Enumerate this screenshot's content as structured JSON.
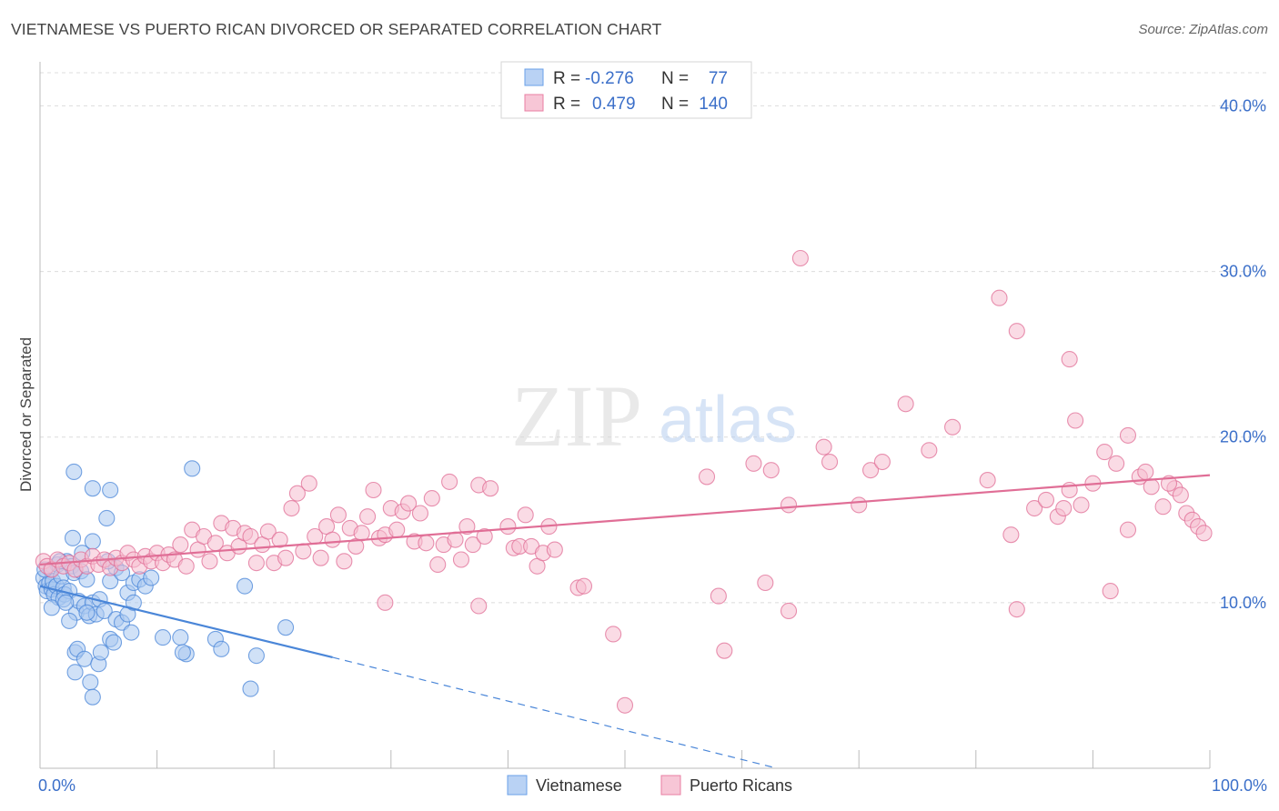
{
  "title": "VIETNAMESE VS PUERTO RICAN DIVORCED OR SEPARATED CORRELATION CHART",
  "source": "Source: ZipAtlas.com",
  "watermark": {
    "zip": "ZIP",
    "atlas": "atlas"
  },
  "legend": {
    "rows": [
      {
        "r_label": "R =",
        "r_value": "-0.276",
        "n_label": "N =",
        "n_value": "77",
        "color": "#6aa0e8",
        "fill": "#b9d2f4"
      },
      {
        "r_label": "R =",
        "r_value": "0.479",
        "n_label": "N =",
        "n_value": "140",
        "color": "#e87fa3",
        "fill": "#f7c6d6"
      }
    ]
  },
  "chart_data": {
    "type": "scatter",
    "title": "VIETNAMESE VS PUERTO RICAN DIVORCED OR SEPARATED CORRELATION CHART",
    "xlabel": "",
    "ylabel": "Divorced or Separated",
    "xlim": [
      0,
      100
    ],
    "ylim": [
      0,
      42
    ],
    "x_tick_labels": [
      "0.0%",
      "100.0%"
    ],
    "y_ticks": [
      10,
      20,
      30,
      40
    ],
    "y_tick_labels": [
      "10.0%",
      "20.0%",
      "30.0%",
      "40.0%"
    ],
    "grid": true,
    "legend_position": "top-center",
    "series": [
      {
        "name": "Vietnamese",
        "color": "#4a86d8",
        "fill": "#a9c8f0",
        "trend": {
          "x": [
            0,
            25,
            63
          ],
          "y": [
            11.0,
            6.7,
            0.0
          ],
          "solid_until": 25
        },
        "points": [
          [
            0.3,
            11.5
          ],
          [
            0.5,
            11.0
          ],
          [
            0.6,
            10.7
          ],
          [
            0.8,
            11.2
          ],
          [
            0.9,
            12.0
          ],
          [
            1.0,
            10.8
          ],
          [
            1.1,
            11.3
          ],
          [
            1.2,
            10.5
          ],
          [
            1.4,
            11.0
          ],
          [
            1.5,
            12.3
          ],
          [
            1.6,
            10.3
          ],
          [
            1.8,
            11.6
          ],
          [
            2.0,
            10.9
          ],
          [
            2.1,
            10.5
          ],
          [
            2.3,
            12.5
          ],
          [
            2.5,
            10.7
          ],
          [
            2.7,
            12.2
          ],
          [
            2.9,
            11.8
          ],
          [
            3.1,
            9.4
          ],
          [
            3.3,
            10.1
          ],
          [
            3.5,
            11.9
          ],
          [
            3.8,
            9.8
          ],
          [
            4.0,
            11.4
          ],
          [
            4.2,
            9.2
          ],
          [
            4.5,
            10.0
          ],
          [
            4.8,
            9.3
          ],
          [
            5.1,
            10.2
          ],
          [
            5.5,
            9.5
          ],
          [
            6.0,
            11.3
          ],
          [
            6.5,
            12.1
          ],
          [
            7.0,
            11.8
          ],
          [
            7.5,
            10.6
          ],
          [
            8.0,
            11.2
          ],
          [
            8.5,
            11.4
          ],
          [
            9.0,
            11.0
          ],
          [
            1.0,
            9.7
          ],
          [
            2.0,
            10.2
          ],
          [
            2.5,
            8.9
          ],
          [
            3.0,
            7.0
          ],
          [
            3.2,
            7.2
          ],
          [
            3.8,
            6.6
          ],
          [
            4.3,
            5.2
          ],
          [
            4.5,
            4.3
          ],
          [
            5.0,
            6.3
          ],
          [
            5.2,
            7.0
          ],
          [
            6.0,
            7.8
          ],
          [
            6.5,
            9.0
          ],
          [
            6.3,
            7.6
          ],
          [
            7.0,
            8.8
          ],
          [
            7.5,
            9.3
          ],
          [
            8.0,
            10.0
          ],
          [
            3.0,
            5.8
          ],
          [
            2.8,
            13.9
          ],
          [
            4.5,
            13.7
          ],
          [
            4.5,
            16.9
          ],
          [
            5.7,
            15.1
          ],
          [
            6.0,
            16.8
          ],
          [
            2.9,
            17.9
          ],
          [
            9.5,
            11.5
          ],
          [
            10.5,
            7.9
          ],
          [
            12.0,
            7.9
          ],
          [
            12.5,
            6.9
          ],
          [
            13.0,
            18.1
          ],
          [
            12.2,
            7.0
          ],
          [
            15.0,
            7.8
          ],
          [
            15.5,
            7.2
          ],
          [
            17.5,
            11.0
          ],
          [
            18.0,
            4.8
          ],
          [
            18.5,
            6.8
          ],
          [
            21.0,
            8.5
          ],
          [
            0.4,
            12.0
          ],
          [
            1.7,
            12.5
          ],
          [
            2.2,
            10.0
          ],
          [
            3.6,
            13.0
          ],
          [
            7.8,
            8.2
          ],
          [
            5.8,
            12.5
          ],
          [
            4.0,
            9.4
          ]
        ]
      },
      {
        "name": "Puerto Ricans",
        "color": "#e06e96",
        "fill": "#f5bdd0",
        "trend": {
          "x": [
            0,
            100
          ],
          "y": [
            12.3,
            17.7
          ]
        },
        "points": [
          [
            0.3,
            12.5
          ],
          [
            0.6,
            12.2
          ],
          [
            1.0,
            12.0
          ],
          [
            1.5,
            12.6
          ],
          [
            2.0,
            12.2
          ],
          [
            2.5,
            12.4
          ],
          [
            3.0,
            12.0
          ],
          [
            3.5,
            12.6
          ],
          [
            4.0,
            12.2
          ],
          [
            4.5,
            12.8
          ],
          [
            5.0,
            12.3
          ],
          [
            5.5,
            12.6
          ],
          [
            6.0,
            12.1
          ],
          [
            6.5,
            12.7
          ],
          [
            7.0,
            12.4
          ],
          [
            7.5,
            13.0
          ],
          [
            8.0,
            12.6
          ],
          [
            8.5,
            12.2
          ],
          [
            9.0,
            12.8
          ],
          [
            9.5,
            12.5
          ],
          [
            10.0,
            13.0
          ],
          [
            10.5,
            12.4
          ],
          [
            11.0,
            12.9
          ],
          [
            11.5,
            12.6
          ],
          [
            12.0,
            13.5
          ],
          [
            12.5,
            12.2
          ],
          [
            13.0,
            14.4
          ],
          [
            13.5,
            13.2
          ],
          [
            14.0,
            14.0
          ],
          [
            14.5,
            12.5
          ],
          [
            15.0,
            13.6
          ],
          [
            15.5,
            14.8
          ],
          [
            16.0,
            13.0
          ],
          [
            16.5,
            14.5
          ],
          [
            17.0,
            13.4
          ],
          [
            17.5,
            14.2
          ],
          [
            18.0,
            14.0
          ],
          [
            18.5,
            12.4
          ],
          [
            19.0,
            13.5
          ],
          [
            19.5,
            14.3
          ],
          [
            20.0,
            12.4
          ],
          [
            20.5,
            13.8
          ],
          [
            21.0,
            12.7
          ],
          [
            21.5,
            15.7
          ],
          [
            22.0,
            16.6
          ],
          [
            22.5,
            13.1
          ],
          [
            23.0,
            17.2
          ],
          [
            23.5,
            14.0
          ],
          [
            24.0,
            12.7
          ],
          [
            24.5,
            14.6
          ],
          [
            25.0,
            13.8
          ],
          [
            25.5,
            15.3
          ],
          [
            26.0,
            12.5
          ],
          [
            26.5,
            14.5
          ],
          [
            27.0,
            13.4
          ],
          [
            27.5,
            14.2
          ],
          [
            28.0,
            15.2
          ],
          [
            28.5,
            16.8
          ],
          [
            29.0,
            13.9
          ],
          [
            29.5,
            14.1
          ],
          [
            30.0,
            15.7
          ],
          [
            30.5,
            14.4
          ],
          [
            31.0,
            15.5
          ],
          [
            31.5,
            16.0
          ],
          [
            32.0,
            13.7
          ],
          [
            32.5,
            15.4
          ],
          [
            33.0,
            13.6
          ],
          [
            33.5,
            16.3
          ],
          [
            34.0,
            12.3
          ],
          [
            34.5,
            13.5
          ],
          [
            35.0,
            17.3
          ],
          [
            35.5,
            13.8
          ],
          [
            36.0,
            12.6
          ],
          [
            36.5,
            14.6
          ],
          [
            37.0,
            13.5
          ],
          [
            37.5,
            17.1
          ],
          [
            38.0,
            14.0
          ],
          [
            38.5,
            16.9
          ],
          [
            40.0,
            14.6
          ],
          [
            40.5,
            13.3
          ],
          [
            41.0,
            13.4
          ],
          [
            41.5,
            15.3
          ],
          [
            42.0,
            13.4
          ],
          [
            42.5,
            12.2
          ],
          [
            43.0,
            13.0
          ],
          [
            43.5,
            14.6
          ],
          [
            44.0,
            13.2
          ],
          [
            46.0,
            10.9
          ],
          [
            29.5,
            10.0
          ],
          [
            37.5,
            9.8
          ],
          [
            46.5,
            11.0
          ],
          [
            58.0,
            10.4
          ],
          [
            62.0,
            11.2
          ],
          [
            64.0,
            9.5
          ],
          [
            49.0,
            8.1
          ],
          [
            50.0,
            3.8
          ],
          [
            58.5,
            7.1
          ],
          [
            57.0,
            17.6
          ],
          [
            61.0,
            18.4
          ],
          [
            62.5,
            18.0
          ],
          [
            64.0,
            15.9
          ],
          [
            67.0,
            19.4
          ],
          [
            67.5,
            18.5
          ],
          [
            70.0,
            15.9
          ],
          [
            71.0,
            18.0
          ],
          [
            72.0,
            18.5
          ],
          [
            74.0,
            22.0
          ],
          [
            76.0,
            19.2
          ],
          [
            78.0,
            20.6
          ],
          [
            81.0,
            17.4
          ],
          [
            83.0,
            14.1
          ],
          [
            85.0,
            15.7
          ],
          [
            86.0,
            16.2
          ],
          [
            87.0,
            15.2
          ],
          [
            87.5,
            15.7
          ],
          [
            88.0,
            16.8
          ],
          [
            89.0,
            15.9
          ],
          [
            90.0,
            17.2
          ],
          [
            91.0,
            19.1
          ],
          [
            92.0,
            18.4
          ],
          [
            93.0,
            20.1
          ],
          [
            94.0,
            17.6
          ],
          [
            95.0,
            17.0
          ],
          [
            96.0,
            15.8
          ],
          [
            97.0,
            16.9
          ],
          [
            98.0,
            15.4
          ],
          [
            98.5,
            15.0
          ],
          [
            99.0,
            14.6
          ],
          [
            99.5,
            14.2
          ],
          [
            88.5,
            21.0
          ],
          [
            91.5,
            10.7
          ],
          [
            93.0,
            14.4
          ],
          [
            83.5,
            9.6
          ],
          [
            65.0,
            30.8
          ],
          [
            82.0,
            28.4
          ],
          [
            83.5,
            26.4
          ],
          [
            88.0,
            24.7
          ],
          [
            94.5,
            17.9
          ],
          [
            96.5,
            17.2
          ],
          [
            97.5,
            16.5
          ]
        ]
      }
    ]
  },
  "bottom_legend": [
    {
      "label": "Vietnamese",
      "fill": "#b9d2f4",
      "stroke": "#6aa0e8"
    },
    {
      "label": "Puerto Ricans",
      "fill": "#f7c6d6",
      "stroke": "#e87fa3"
    }
  ]
}
